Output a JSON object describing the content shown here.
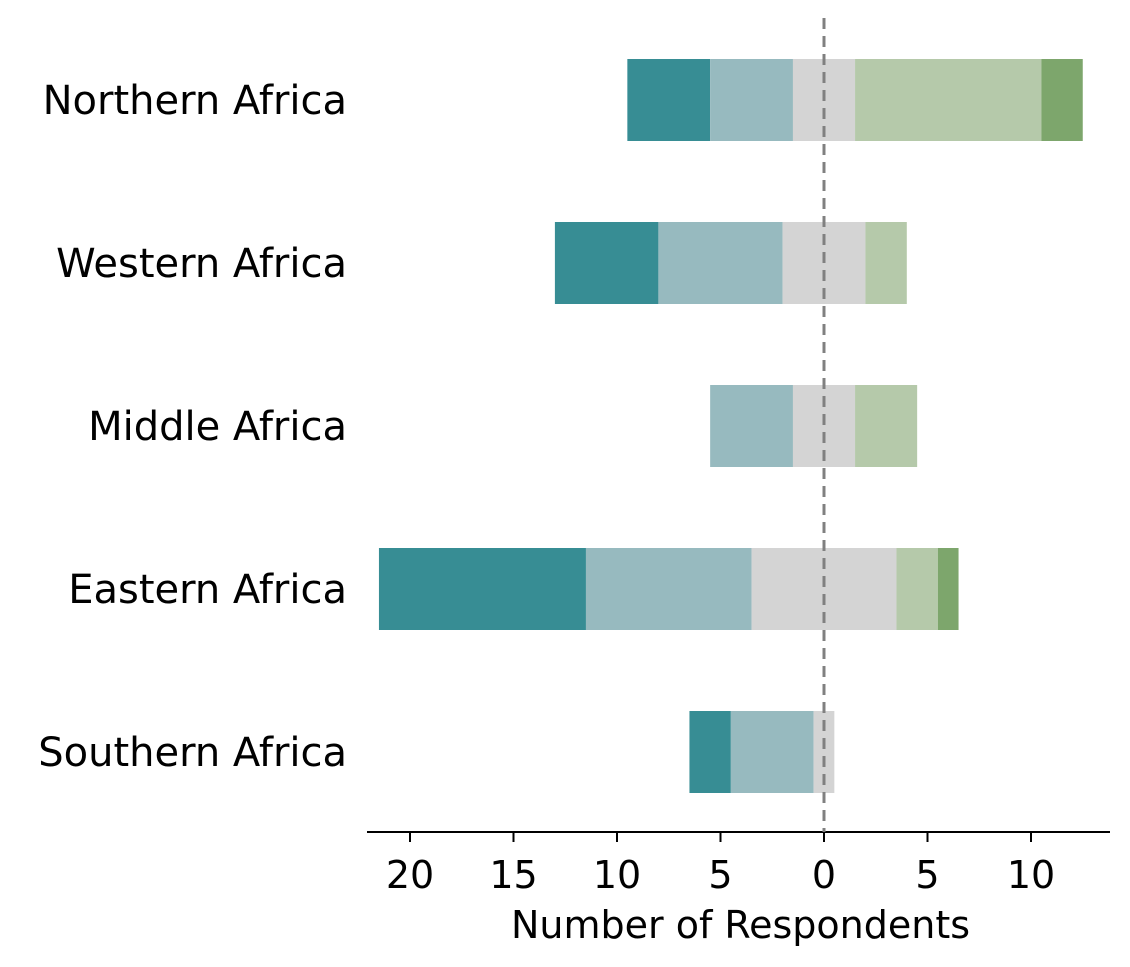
{
  "chart_data": {
    "type": "bar",
    "orientation": "horizontal-diverging",
    "categories": [
      "Northern Africa",
      "Western Africa",
      "Middle Africa",
      "Eastern Africa",
      "Southern Africa"
    ],
    "segments": [
      {
        "color": "#378d94",
        "values": [
          [
            -9.5,
            -5.5
          ],
          [
            -13,
            -8
          ],
          null,
          [
            -21.5,
            -11.5
          ],
          [
            -6.5,
            -4.5
          ]
        ]
      },
      {
        "color": "#97babf",
        "values": [
          [
            -5.5,
            -1.5
          ],
          [
            -8,
            -2
          ],
          [
            -5.5,
            -1.5
          ],
          [
            -11.5,
            -3.5
          ],
          [
            -4.5,
            -0.5
          ]
        ]
      },
      {
        "color": "#d4d4d4",
        "values": [
          [
            -1.5,
            1.5
          ],
          [
            -2,
            2
          ],
          [
            -1.5,
            1.5
          ],
          [
            -3.5,
            3.5
          ],
          [
            -0.5,
            0.5
          ]
        ]
      },
      {
        "color": "#b5c9aa",
        "values": [
          [
            1.5,
            10.5
          ],
          [
            2,
            4
          ],
          [
            1.5,
            4.5
          ],
          [
            3.5,
            5.5
          ],
          null
        ]
      },
      {
        "color": "#7da66c",
        "values": [
          [
            10.5,
            12.5
          ],
          null,
          null,
          [
            5.5,
            6.5
          ],
          null
        ]
      }
    ],
    "xlim": [
      -22,
      14
    ],
    "x_ticks": [
      -20,
      -15,
      -10,
      -5,
      0,
      5,
      10
    ],
    "x_tick_labels": [
      "20",
      "15",
      "10",
      "5",
      "0",
      "5",
      "10"
    ],
    "xlabel": "Number of Respondents",
    "reference_line": {
      "x": 0,
      "style": "dashed",
      "color": "#808080"
    },
    "grid": false
  }
}
